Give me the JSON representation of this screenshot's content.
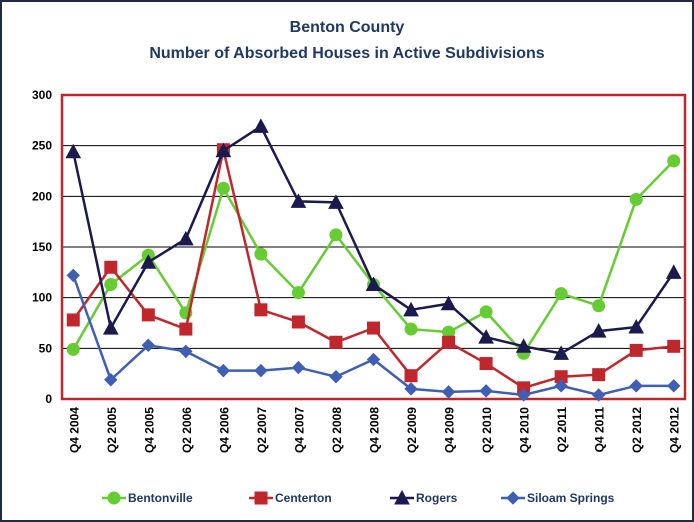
{
  "chart_data": {
    "type": "line",
    "title": "Benton County",
    "subtitle": "Number of Absorbed Houses in Active Subdivisions",
    "categories": [
      "Q4 2004",
      "Q2 2005",
      "Q4 2005",
      "Q2 2006",
      "Q4 2006",
      "Q2 2007",
      "Q4 2007",
      "Q2 2008",
      "Q4 2008",
      "Q2 2009",
      "Q4 2009",
      "Q2 2010",
      "Q4 2010",
      "Q2 2011",
      "Q4 2011",
      "Q2 2012",
      "Q4 2012"
    ],
    "ylim": [
      0,
      300
    ],
    "yticks": [
      0,
      50,
      100,
      150,
      200,
      250,
      300
    ],
    "grid": true,
    "legend_position": "bottom",
    "series": [
      {
        "name": "Bentonville",
        "color": "#66cc33",
        "marker": "circle",
        "values": [
          49,
          113,
          142,
          85,
          208,
          143,
          105,
          162,
          113,
          69,
          66,
          86,
          45,
          104,
          92,
          197,
          235
        ]
      },
      {
        "name": "Centerton",
        "color": "#c0272d",
        "marker": "square",
        "values": [
          78,
          130,
          83,
          69,
          246,
          88,
          76,
          56,
          70,
          23,
          56,
          35,
          11,
          22,
          24,
          48,
          52
        ]
      },
      {
        "name": "Rogers",
        "color": "#1a1a4e",
        "marker": "triangle",
        "values": [
          244,
          70,
          135,
          158,
          245,
          269,
          195,
          194,
          113,
          88,
          94,
          61,
          52,
          45,
          67,
          71,
          125
        ]
      },
      {
        "name": "Siloam Springs",
        "color": "#3f5fb5",
        "marker": "diamond",
        "values": [
          122,
          19,
          53,
          47,
          28,
          28,
          31,
          22,
          39,
          10,
          7,
          8,
          4,
          13,
          4,
          13,
          13
        ]
      }
    ]
  }
}
